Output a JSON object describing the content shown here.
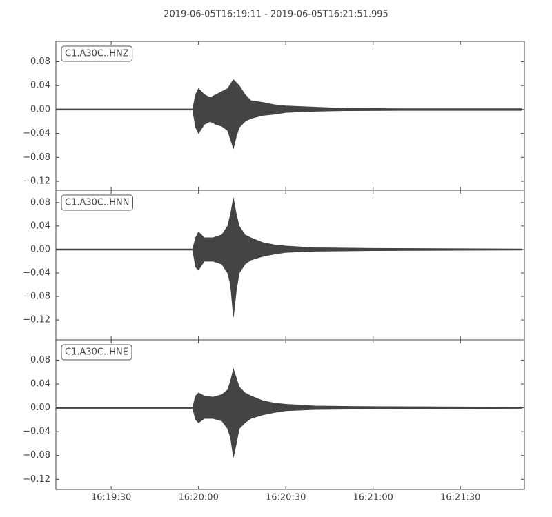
{
  "chart_data": [
    {
      "type": "envelope",
      "title": "2019-06-05T16:19:11  -  2019-06-05T16:21:51.995",
      "label": "C1.A30C..HNZ",
      "color": "#444444",
      "x": [
        "16:19:11",
        "16:19:58",
        "16:19:59",
        "16:20:00",
        "16:20:02",
        "16:20:04",
        "16:20:06",
        "16:20:08",
        "16:20:10",
        "16:20:12",
        "16:20:13",
        "16:20:14",
        "16:20:16",
        "16:20:18",
        "16:20:22",
        "16:20:26",
        "16:20:30",
        "16:20:40",
        "16:20:50",
        "16:21:10",
        "16:21:51"
      ],
      "upper": [
        0.001,
        0.001,
        0.025,
        0.035,
        0.025,
        0.02,
        0.025,
        0.03,
        0.035,
        0.05,
        0.045,
        0.04,
        0.025,
        0.015,
        0.012,
        0.008,
        0.006,
        0.004,
        0.002,
        0.0015,
        0.0015
      ],
      "lower": [
        -0.001,
        -0.001,
        -0.03,
        -0.04,
        -0.025,
        -0.02,
        -0.025,
        -0.028,
        -0.035,
        -0.065,
        -0.045,
        -0.03,
        -0.02,
        -0.015,
        -0.01,
        -0.008,
        -0.005,
        -0.003,
        -0.002,
        -0.0015,
        -0.0015
      ],
      "xlim": [
        "16:19:11",
        "16:21:51.995"
      ],
      "xticks": [
        "16:19:30",
        "16:20:00",
        "16:20:30",
        "16:21:00",
        "16:21:30"
      ],
      "ylim": [
        -0.135,
        0.114
      ],
      "yticks": [
        {
          "value": -0.12,
          "label": "−0.12"
        },
        {
          "value": -0.08,
          "label": "−0.08"
        },
        {
          "value": -0.04,
          "label": "−0.04"
        },
        {
          "value": 0,
          "label": "0.00"
        },
        0.04,
        0.08
      ]
    },
    {
      "type": "envelope",
      "label": "C1.A30C..HNN",
      "color": "#444444",
      "x": [
        "16:19:11",
        "16:19:58",
        "16:19:59",
        "16:20:00",
        "16:20:02",
        "16:20:05",
        "16:20:08",
        "16:20:10",
        "16:20:11",
        "16:20:12",
        "16:20:13",
        "16:20:14",
        "16:20:16",
        "16:20:18",
        "16:20:22",
        "16:20:26",
        "16:20:30",
        "16:20:40",
        "16:21:00",
        "16:21:51"
      ],
      "upper": [
        0.001,
        0.001,
        0.02,
        0.03,
        0.02,
        0.02,
        0.025,
        0.04,
        0.06,
        0.088,
        0.06,
        0.04,
        0.025,
        0.02,
        0.012,
        0.008,
        0.006,
        0.003,
        0.002,
        0.001
      ],
      "lower": [
        -0.001,
        -0.001,
        -0.03,
        -0.035,
        -0.02,
        -0.02,
        -0.025,
        -0.04,
        -0.06,
        -0.115,
        -0.07,
        -0.04,
        -0.025,
        -0.018,
        -0.012,
        -0.008,
        -0.005,
        -0.003,
        -0.002,
        -0.001
      ],
      "xlim": [
        "16:19:11",
        "16:21:51.995"
      ],
      "xticks": [
        "16:19:30",
        "16:20:00",
        "16:20:30",
        "16:21:00",
        "16:21:30"
      ],
      "ylim": [
        -0.154,
        0.101
      ],
      "yticks": [
        {
          "value": -0.12,
          "label": "−0.12"
        },
        {
          "value": -0.08,
          "label": "−0.08"
        },
        {
          "value": -0.04,
          "label": "−0.04"
        },
        {
          "value": 0,
          "label": "0.00"
        },
        0.04,
        0.08
      ]
    },
    {
      "type": "envelope",
      "label": "C1.A30C..HNE",
      "color": "#444444",
      "x": [
        "16:19:11",
        "16:19:58",
        "16:19:59",
        "16:20:00",
        "16:20:02",
        "16:20:05",
        "16:20:08",
        "16:20:10",
        "16:20:11",
        "16:20:12",
        "16:20:13",
        "16:20:14",
        "16:20:16",
        "16:20:18",
        "16:20:22",
        "16:20:26",
        "16:20:30",
        "16:20:40",
        "16:21:00",
        "16:21:51"
      ],
      "upper": [
        0.001,
        0.001,
        0.02,
        0.025,
        0.02,
        0.018,
        0.022,
        0.03,
        0.045,
        0.065,
        0.05,
        0.035,
        0.025,
        0.02,
        0.012,
        0.008,
        0.006,
        0.003,
        0.002,
        0.001
      ],
      "lower": [
        -0.001,
        -0.001,
        -0.02,
        -0.025,
        -0.018,
        -0.018,
        -0.022,
        -0.035,
        -0.05,
        -0.083,
        -0.06,
        -0.035,
        -0.025,
        -0.018,
        -0.012,
        -0.008,
        -0.005,
        -0.003,
        -0.002,
        -0.001
      ],
      "xlim": [
        "16:19:11",
        "16:21:51.995"
      ],
      "xticks": [
        "16:19:30",
        "16:20:00",
        "16:20:30",
        "16:21:00",
        "16:21:30"
      ],
      "ylim": [
        -0.137,
        0.114
      ],
      "yticks": [
        {
          "value": -0.12,
          "label": "−0.12"
        },
        {
          "value": -0.08,
          "label": "−0.08"
        },
        {
          "value": -0.04,
          "label": "−0.04"
        },
        {
          "value": 0,
          "label": "0.00"
        },
        0.04,
        0.08
      ]
    }
  ]
}
